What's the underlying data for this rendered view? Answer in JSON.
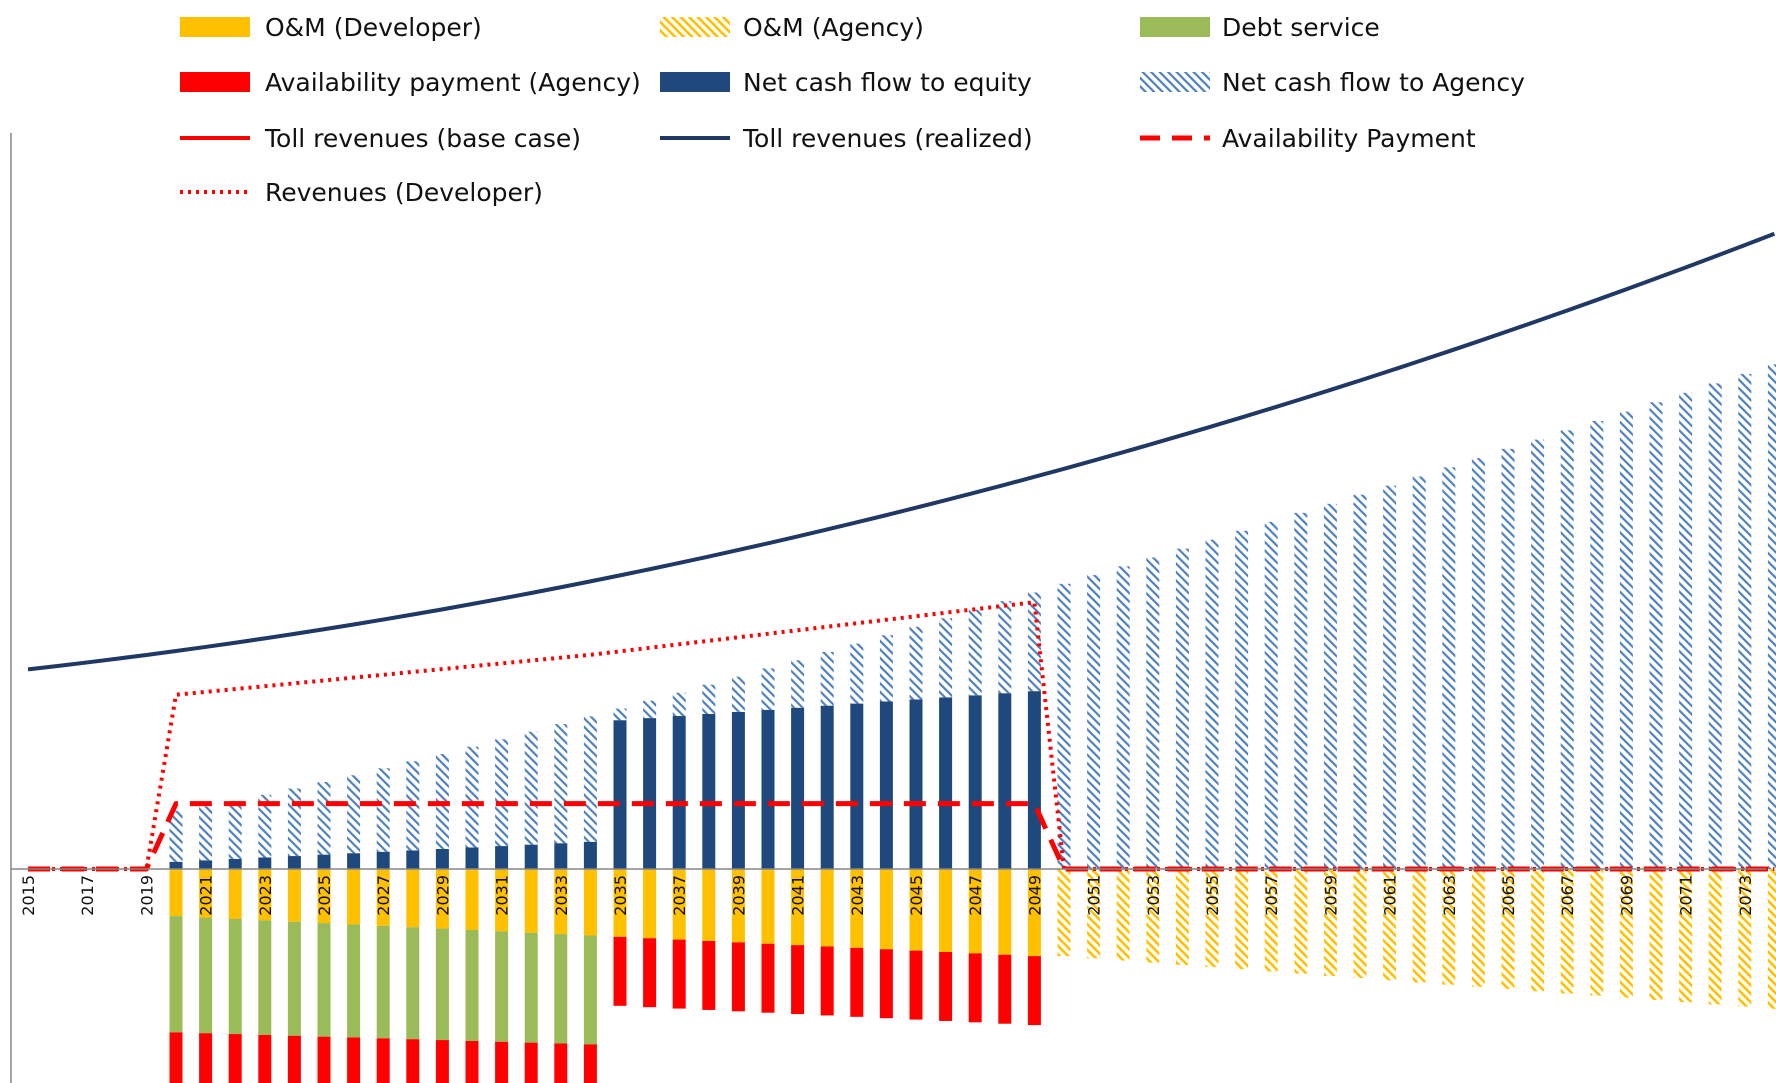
{
  "chart_data": {
    "type": "bar",
    "title": "",
    "xlabel": "",
    "ylabel": "",
    "x_start": 2015,
    "x_end": 2074,
    "ylim": [
      -7.5,
      25
    ],
    "grid": false,
    "legend_position": "top",
    "legend": [
      {
        "key": "om_dev",
        "label": "O&M (Developer)",
        "kind": "bar",
        "color": "#FFC000",
        "hatched": false
      },
      {
        "key": "om_agency",
        "label": "O&M (Agency)",
        "kind": "bar",
        "color": "#FFC000",
        "hatched": true
      },
      {
        "key": "debt",
        "label": "Debt service",
        "kind": "bar",
        "color": "#9BBB59",
        "hatched": false
      },
      {
        "key": "ap_agency",
        "label": "Availability payment (Agency)",
        "kind": "bar",
        "color": "#FF0000",
        "hatched": false
      },
      {
        "key": "ncf_equity",
        "label": "Net cash flow to equity",
        "kind": "bar",
        "color": "#1F497D",
        "hatched": false
      },
      {
        "key": "ncf_agency",
        "label": "Net cash flow to Agency",
        "kind": "bar",
        "color": "#4F81BD",
        "hatched": true
      },
      {
        "key": "toll_base",
        "label": "Toll revenues (base case)",
        "kind": "line",
        "color": "#FF0000",
        "dash": "solid"
      },
      {
        "key": "toll_realized",
        "label": "Toll revenues (realized)",
        "kind": "line",
        "color": "#1F3864",
        "dash": "solid"
      },
      {
        "key": "ap_line",
        "label": "Availability Payment",
        "kind": "line",
        "color": "#FF0000",
        "dash": "dashed"
      },
      {
        "key": "rev_dev",
        "label": "Revenues (Developer)",
        "kind": "line",
        "color": "#FF0000",
        "dash": "dotted"
      }
    ],
    "tick_labels": [
      "2015",
      "2017",
      "2019",
      "2021",
      "2023",
      "2025",
      "2027",
      "2029",
      "2031",
      "2033",
      "2035",
      "2037",
      "2039",
      "2041",
      "2043",
      "2045",
      "2047",
      "2049",
      "2051",
      "2053",
      "2055",
      "2057",
      "2059",
      "2061",
      "2063",
      "2065",
      "2067",
      "2069",
      "2071",
      "2073"
    ],
    "series": {
      "om_dev": {
        "from": 2020,
        "to": 2049,
        "start": 1.3,
        "end": 2.4
      },
      "om_agency": {
        "from": 2050,
        "to": 2074,
        "start": 2.4,
        "end": 3.85
      },
      "debt": {
        "from": 2020,
        "to": 2034,
        "start": 3.2,
        "end": 3.0
      },
      "ap_agency": {
        "from": 2020,
        "to": 2049,
        "start": 1.9,
        "end": 1.9
      },
      "ncf_equity": {
        "from": 2020,
        "to": 2049,
        "start": [
          0.2,
          0.75
        ],
        "end": [
          4.1,
          4.9
        ]
      },
      "ncf_agency": {
        "from": 2020,
        "to": 2074,
        "top_start": 1.6,
        "top_end": 13.9
      },
      "toll_realized": {
        "from": 2015,
        "to": 2074,
        "start": 5.5,
        "end": 17.5
      },
      "rev_dev": {
        "points": [
          [
            2015,
            0
          ],
          [
            2019,
            0
          ],
          [
            2020,
            4.8
          ],
          [
            2034,
            5.9
          ],
          [
            2049,
            7.35
          ],
          [
            2050,
            0
          ],
          [
            2074,
            0
          ]
        ]
      },
      "ap_line": {
        "points": [
          [
            2015,
            0
          ],
          [
            2019,
            0
          ],
          [
            2020,
            1.8
          ],
          [
            2049,
            1.8
          ],
          [
            2050,
            0
          ],
          [
            2074,
            0
          ]
        ]
      }
    }
  }
}
